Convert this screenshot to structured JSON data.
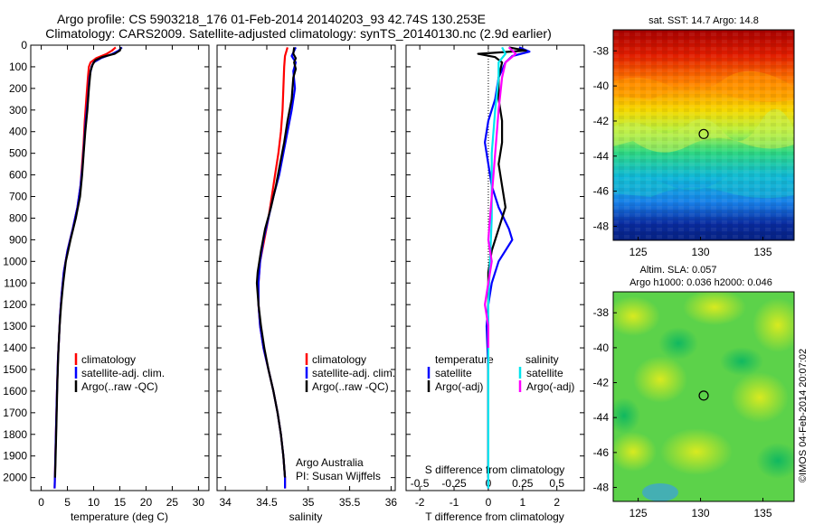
{
  "title_line1": "Argo profile: CS 5903218_176 01-Feb-2014 20140203_93 42.74S 130.253E",
  "title_line2": "Climatology: CARS2009. Satellite-adjusted climatology: synTS_20140130.nc (2.9d earlier)",
  "colors": {
    "red": "#ff0000",
    "blue": "#0000ff",
    "black": "#000000",
    "cyan": "#00e5ee",
    "magenta": "#ff00ff"
  },
  "chart_data": [
    {
      "type": "line",
      "panel": "temperature",
      "xlabel": "temperature (deg C)",
      "ylabel": "",
      "xlim": [
        -2,
        32
      ],
      "ylim": [
        2060,
        0
      ],
      "xticks": [
        0,
        5,
        10,
        15,
        20,
        25,
        30
      ],
      "yticks": [
        0,
        100,
        200,
        300,
        400,
        500,
        600,
        700,
        800,
        900,
        1000,
        1100,
        1200,
        1300,
        1400,
        1500,
        1600,
        1700,
        1800,
        1900,
        2000
      ],
      "legend": {
        "position": "bottom-right",
        "entries": [
          "climatology",
          "satellite-adj. clim.",
          "Argo(..raw -QC)"
        ]
      },
      "series": [
        {
          "name": "climatology",
          "color": "red",
          "points": [
            [
              14.2,
              10
            ],
            [
              13.5,
              25
            ],
            [
              12.5,
              40
            ],
            [
              10.5,
              60
            ],
            [
              9.4,
              80
            ],
            [
              9.1,
              100
            ],
            [
              8.9,
              150
            ],
            [
              8.6,
              250
            ],
            [
              8.3,
              350
            ],
            [
              8.1,
              450
            ],
            [
              7.8,
              550
            ],
            [
              7.5,
              650
            ],
            [
              6.9,
              750
            ],
            [
              6.0,
              850
            ],
            [
              5.0,
              950
            ],
            [
              4.3,
              1050
            ],
            [
              3.9,
              1150
            ],
            [
              3.6,
              1250
            ],
            [
              3.4,
              1350
            ],
            [
              3.2,
              1450
            ],
            [
              3.0,
              1600
            ],
            [
              2.8,
              1800
            ],
            [
              2.6,
              2000
            ],
            [
              2.55,
              2050
            ]
          ]
        },
        {
          "name": "satellite-adj. clim.",
          "color": "blue",
          "points": [
            [
              15.4,
              10
            ],
            [
              14.8,
              25
            ],
            [
              13.6,
              40
            ],
            [
              11.4,
              60
            ],
            [
              10.0,
              80
            ],
            [
              9.6,
              100
            ],
            [
              9.2,
              150
            ],
            [
              8.9,
              250
            ],
            [
              8.5,
              350
            ],
            [
              8.2,
              450
            ],
            [
              7.9,
              550
            ],
            [
              7.5,
              650
            ],
            [
              6.9,
              750
            ],
            [
              6.0,
              850
            ],
            [
              5.0,
              950
            ],
            [
              4.3,
              1050
            ],
            [
              3.9,
              1150
            ],
            [
              3.6,
              1250
            ],
            [
              3.4,
              1350
            ],
            [
              3.2,
              1450
            ],
            [
              3.0,
              1600
            ],
            [
              2.8,
              1800
            ],
            [
              2.6,
              2000
            ],
            [
              2.55,
              2050
            ]
          ]
        },
        {
          "name": "Argo(..raw -QC)",
          "color": "black",
          "points": [
            [
              15.2,
              10
            ],
            [
              15.0,
              25
            ],
            [
              14.0,
              40
            ],
            [
              11.6,
              55
            ],
            [
              10.3,
              70
            ],
            [
              9.8,
              90
            ],
            [
              9.4,
              120
            ],
            [
              9.1,
              200
            ],
            [
              8.8,
              300
            ],
            [
              8.4,
              400
            ],
            [
              8.1,
              500
            ],
            [
              7.8,
              600
            ],
            [
              7.4,
              700
            ],
            [
              6.6,
              800
            ],
            [
              5.6,
              900
            ],
            [
              4.7,
              1000
            ],
            [
              4.2,
              1100
            ],
            [
              3.8,
              1200
            ],
            [
              3.5,
              1300
            ],
            [
              3.3,
              1400
            ],
            [
              3.1,
              1550
            ],
            [
              2.9,
              1750
            ],
            [
              2.65,
              2000
            ]
          ]
        }
      ]
    },
    {
      "type": "line",
      "panel": "salinity",
      "xlabel": "salinity",
      "ylabel": "",
      "xlim": [
        33.9,
        36.05
      ],
      "ylim": [
        2060,
        0
      ],
      "xticks": [
        34,
        34.5,
        35,
        35.5,
        36
      ],
      "legend": {
        "position": "bottom-right",
        "entries": [
          "climatology",
          "satellite-adj. clim.",
          "Argo(..raw -QC)"
        ]
      },
      "annotations": [
        "Argo Australia",
        "PI: Susan Wijffels"
      ],
      "series": [
        {
          "name": "climatology",
          "color": "red",
          "points": [
            [
              34.75,
              10
            ],
            [
              34.72,
              50
            ],
            [
              34.71,
              100
            ],
            [
              34.7,
              200
            ],
            [
              34.69,
              300
            ],
            [
              34.67,
              400
            ],
            [
              34.64,
              500
            ],
            [
              34.6,
              600
            ],
            [
              34.56,
              700
            ],
            [
              34.52,
              800
            ],
            [
              34.47,
              900
            ],
            [
              34.42,
              1000
            ],
            [
              34.4,
              1100
            ],
            [
              34.4,
              1200
            ],
            [
              34.42,
              1300
            ],
            [
              34.46,
              1400
            ],
            [
              34.52,
              1500
            ],
            [
              34.58,
              1600
            ],
            [
              34.63,
              1700
            ],
            [
              34.67,
              1800
            ],
            [
              34.7,
              1900
            ],
            [
              34.72,
              2000
            ],
            [
              34.72,
              2050
            ]
          ]
        },
        {
          "name": "satellite-adj. clim.",
          "color": "blue",
          "points": [
            [
              34.85,
              10
            ],
            [
              34.8,
              50
            ],
            [
              34.85,
              80
            ],
            [
              34.82,
              120
            ],
            [
              34.84,
              200
            ],
            [
              34.8,
              300
            ],
            [
              34.75,
              400
            ],
            [
              34.7,
              500
            ],
            [
              34.65,
              600
            ],
            [
              34.58,
              700
            ],
            [
              34.52,
              800
            ],
            [
              34.46,
              900
            ],
            [
              34.42,
              1000
            ],
            [
              34.4,
              1100
            ],
            [
              34.4,
              1200
            ],
            [
              34.42,
              1300
            ],
            [
              34.46,
              1400
            ],
            [
              34.52,
              1500
            ],
            [
              34.58,
              1600
            ],
            [
              34.63,
              1700
            ],
            [
              34.67,
              1800
            ],
            [
              34.7,
              1900
            ],
            [
              34.72,
              2000
            ],
            [
              34.72,
              2050
            ]
          ]
        },
        {
          "name": "Argo(..raw -QC)",
          "color": "black",
          "points": [
            [
              34.83,
              10
            ],
            [
              34.82,
              40
            ],
            [
              34.85,
              60
            ],
            [
              34.83,
              80
            ],
            [
              34.85,
              110
            ],
            [
              34.82,
              150
            ],
            [
              34.8,
              250
            ],
            [
              34.75,
              350
            ],
            [
              34.71,
              450
            ],
            [
              34.66,
              550
            ],
            [
              34.61,
              650
            ],
            [
              34.55,
              750
            ],
            [
              34.48,
              850
            ],
            [
              34.43,
              950
            ],
            [
              34.39,
              1050
            ],
            [
              34.38,
              1100
            ],
            [
              34.4,
              1200
            ],
            [
              34.43,
              1300
            ],
            [
              34.47,
              1400
            ],
            [
              34.52,
              1500
            ],
            [
              34.58,
              1600
            ],
            [
              34.63,
              1700
            ],
            [
              34.67,
              1800
            ],
            [
              34.7,
              1900
            ],
            [
              34.72,
              2000
            ]
          ]
        }
      ]
    },
    {
      "type": "line",
      "panel": "difference",
      "xlabel": "T difference from climatology",
      "xlabel_top": "S difference from climatology",
      "xlim": [
        -2.4,
        2.8
      ],
      "ylim": [
        2060,
        0
      ],
      "xticks": [
        -2,
        -1,
        0,
        1,
        2
      ],
      "xticks_s": [
        "-0.5",
        "-0.25",
        "0",
        "0.25",
        "0.5"
      ],
      "xticks_s_values": [
        -2,
        -1,
        0,
        1,
        2
      ],
      "legend": {
        "position": "bottom",
        "temperature_heading": "temperature",
        "salinity_heading": "salinity",
        "entries": [
          "satellite",
          "Argo(-adj)",
          "satellite",
          "Argo(-adj)"
        ]
      },
      "series": [
        {
          "name": "satellite",
          "group": "temperature",
          "color": "blue",
          "points": [
            [
              0.9,
              10
            ],
            [
              1.2,
              30
            ],
            [
              0.7,
              50
            ],
            [
              0.5,
              80
            ],
            [
              0.3,
              150
            ],
            [
              0.2,
              250
            ],
            [
              0.0,
              350
            ],
            [
              -0.1,
              450
            ],
            [
              0.0,
              550
            ],
            [
              0.1,
              650
            ],
            [
              0.3,
              750
            ],
            [
              0.6,
              850
            ],
            [
              0.7,
              900
            ],
            [
              0.3,
              1000
            ],
            [
              0.1,
              1100
            ],
            [
              0.0,
              1200
            ],
            [
              -0.05,
              1300
            ],
            [
              0.0,
              1500
            ],
            [
              0.0,
              2050
            ]
          ]
        },
        {
          "name": "Argo(-adj)",
          "group": "temperature",
          "color": "black",
          "points": [
            [
              0.6,
              10
            ],
            [
              1.1,
              25
            ],
            [
              -0.3,
              40
            ],
            [
              0.2,
              55
            ],
            [
              0.4,
              80
            ],
            [
              0.3,
              150
            ],
            [
              0.3,
              250
            ],
            [
              0.4,
              350
            ],
            [
              0.4,
              450
            ],
            [
              0.3,
              550
            ],
            [
              0.4,
              650
            ],
            [
              0.5,
              750
            ],
            [
              0.3,
              850
            ],
            [
              0.1,
              950
            ],
            [
              0.0,
              1050
            ],
            [
              0.0,
              1200
            ],
            [
              0.0,
              2000
            ]
          ]
        },
        {
          "name": "satellite",
          "group": "salinity",
          "color": "cyan",
          "points": [
            [
              0.4,
              10
            ],
            [
              0.5,
              40
            ],
            [
              0.3,
              80
            ],
            [
              0.3,
              150
            ],
            [
              0.2,
              300
            ],
            [
              0.1,
              500
            ],
            [
              0.1,
              800
            ],
            [
              0.05,
              1000
            ],
            [
              0.0,
              1200
            ],
            [
              0.0,
              1500
            ],
            [
              0.0,
              2050
            ]
          ]
        },
        {
          "name": "Argo(-adj)",
          "group": "salinity",
          "color": "magenta",
          "points": [
            [
              0.6,
              10
            ],
            [
              0.8,
              40
            ],
            [
              0.5,
              80
            ],
            [
              0.4,
              150
            ],
            [
              0.3,
              300
            ],
            [
              0.2,
              500
            ],
            [
              0.1,
              700
            ],
            [
              0.0,
              900
            ],
            [
              0.1,
              1000
            ],
            [
              0.0,
              1100
            ],
            [
              -0.1,
              1200
            ],
            [
              0.0,
              1300
            ],
            [
              0.0,
              1400
            ]
          ]
        }
      ]
    },
    {
      "type": "heatmap",
      "panel": "sst-map",
      "title": "sat. SST: 14.7 Argo: 14.8",
      "xlim": [
        123,
        137.5
      ],
      "ylim": [
        -48.8,
        -36.8
      ],
      "xticks": [
        125,
        130,
        135
      ],
      "yticks": [
        -38,
        -40,
        -42,
        -44,
        -46,
        -48
      ],
      "marker": [
        130.253,
        -42.74
      ]
    },
    {
      "type": "heatmap",
      "panel": "sla-map",
      "title_line1": "Altim. SLA: 0.057",
      "title_line2": "Argo h1000: 0.036 h2000: 0.046",
      "xlim": [
        123,
        137.5
      ],
      "ylim": [
        -48.8,
        -36.8
      ],
      "xticks": [
        125,
        130,
        135
      ],
      "yticks": [
        -38,
        -40,
        -42,
        -44,
        -46,
        -48
      ],
      "marker": [
        130.253,
        -42.74
      ]
    }
  ],
  "side_label": "©IMOS 04-Feb-2014 20:07:02"
}
